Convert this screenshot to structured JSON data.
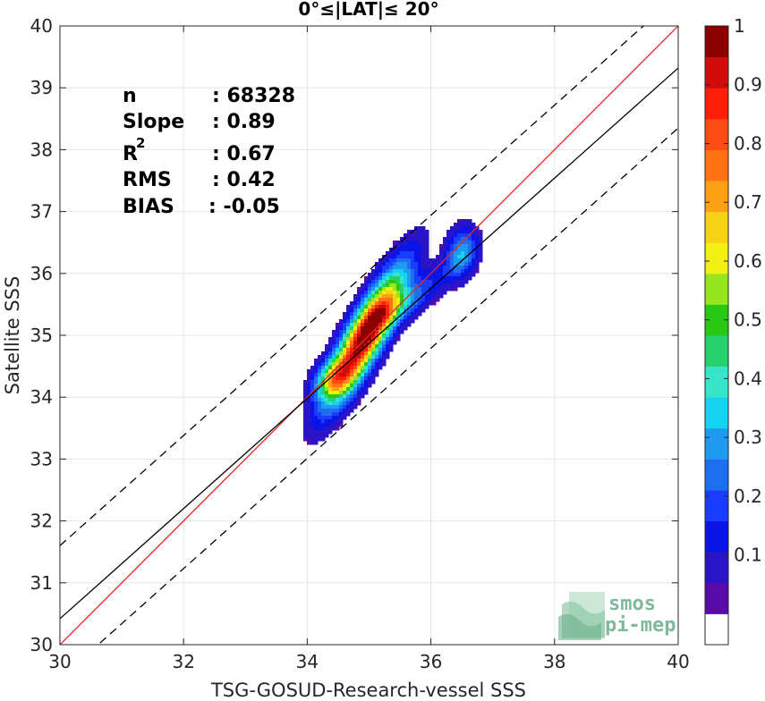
{
  "chart_data": {
    "type": "heatmap",
    "title": "0°≤|LAT|≤ 20°",
    "xlabel": "TSG-GOSUD-Research-vessel SSS",
    "ylabel": "Satellite SSS",
    "xlim": [
      30,
      40
    ],
    "ylim": [
      30,
      40
    ],
    "xticks": [
      30,
      32,
      34,
      36,
      38,
      40
    ],
    "yticks": [
      30,
      31,
      32,
      33,
      34,
      35,
      36,
      37,
      38,
      39,
      40
    ],
    "grid": true,
    "stats": [
      {
        "label": "n",
        "value": ": 68328"
      },
      {
        "label": "Slope",
        "value": ": 0.89"
      },
      {
        "label": "R",
        "sup": "2",
        "value": ": 0.67"
      },
      {
        "label": "RMS",
        "value": ": 0.42"
      },
      {
        "label": "BIAS",
        "value": ": -0.05"
      }
    ],
    "lines": {
      "identity": {
        "slope": 1.0,
        "intercept": 0.0,
        "color": "#e8262a"
      },
      "regression": {
        "slope": 0.89,
        "intercept": 3.72,
        "color": "#000000"
      },
      "upper_bound": {
        "slope": 0.89,
        "intercept": 4.9,
        "color": "#000000",
        "dash": true
      },
      "lower_bound": {
        "slope": 0.89,
        "intercept": 2.75,
        "color": "#000000",
        "dash": true
      }
    },
    "density_peaks": [
      {
        "x": 34.95,
        "y": 35.0,
        "sx": 0.42,
        "sy": 0.72,
        "rho": 0.85,
        "amp": 1.0
      },
      {
        "x": 34.4,
        "y": 34.3,
        "sx": 0.22,
        "sy": 0.22,
        "rho": 0.3,
        "amp": 0.35
      },
      {
        "x": 35.5,
        "y": 35.45,
        "sx": 0.45,
        "sy": 0.3,
        "rho": 0.8,
        "amp": 0.22
      },
      {
        "x": 36.5,
        "y": 36.35,
        "sx": 0.18,
        "sy": 0.28,
        "rho": 0.2,
        "amp": 0.3
      },
      {
        "x": 36.1,
        "y": 36.0,
        "sx": 0.3,
        "sy": 0.2,
        "rho": 0.7,
        "amp": 0.08
      }
    ],
    "colorbar": {
      "ticks": [
        "0.1",
        "0.2",
        "0.3",
        "0.4",
        "0.5",
        "0.6",
        "0.7",
        "0.8",
        "0.9",
        "1"
      ],
      "colors": [
        "#ffffff",
        "#5a0aa8",
        "#2b14c8",
        "#0a14e6",
        "#1a3cff",
        "#1e6ef0",
        "#1e9bf0",
        "#14d2f0",
        "#37e6c8",
        "#28d06e",
        "#28c814",
        "#96e61e",
        "#f0f014",
        "#f5d214",
        "#ffa014",
        "#ff7314",
        "#ff4b14",
        "#ff1e0a",
        "#d20a0a",
        "#8c0000"
      ]
    }
  },
  "logo": {
    "line1": "smos",
    "line2": "pi-mep"
  }
}
